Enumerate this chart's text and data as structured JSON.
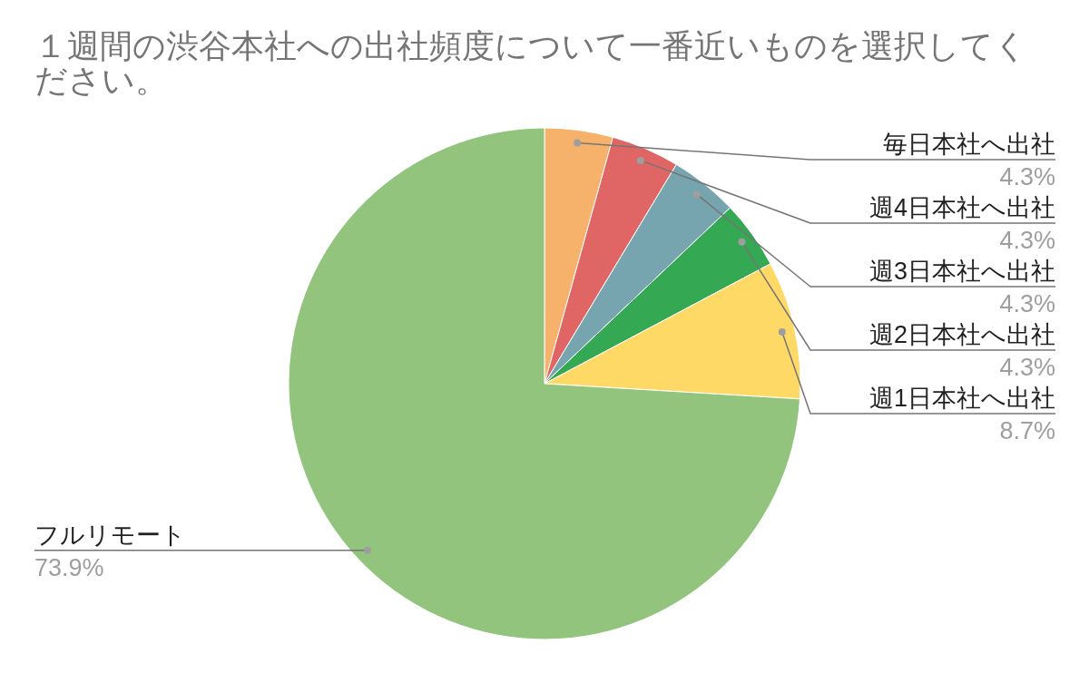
{
  "chart_data": {
    "type": "pie",
    "title": "１週間の渋谷本社への出社頻度について一番近いものを選択してください。",
    "categories": [
      "毎日本社へ出社",
      "週4日本社へ出社",
      "週3日本社へ出社",
      "週2日本社へ出社",
      "週1日本社へ出社",
      "フルリモート"
    ],
    "values": [
      4.3,
      4.3,
      4.3,
      4.3,
      8.7,
      73.9
    ],
    "colors": [
      "#f6b26b",
      "#e06666",
      "#76a5af",
      "#34a853",
      "#ffd966",
      "#93c47d"
    ],
    "value_labels": [
      "4.3%",
      "4.3%",
      "4.3%",
      "4.3%",
      "8.7%",
      "73.9%"
    ]
  }
}
